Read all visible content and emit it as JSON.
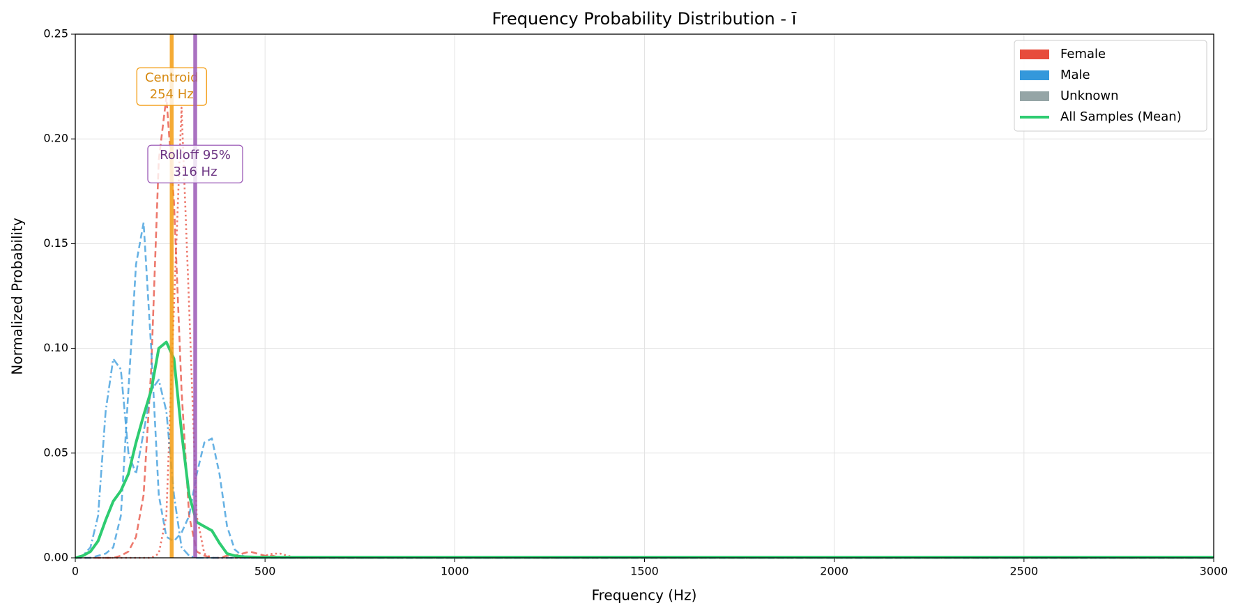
{
  "chart_data": {
    "type": "line",
    "title": "Frequency Probability Distribution - ī",
    "x_label": "Frequency (Hz)",
    "y_label": "Normalized Probability",
    "x": [
      0,
      20,
      40,
      60,
      80,
      100,
      120,
      140,
      160,
      180,
      200,
      220,
      240,
      260,
      280,
      300,
      320,
      340,
      360,
      380,
      400,
      420,
      440,
      460,
      480,
      500,
      520,
      540,
      560,
      580,
      600,
      3000
    ],
    "series": [
      {
        "color": "#e74c3c",
        "dash": "dashed",
        "values": [
          0,
          0,
          0,
          0,
          0,
          0,
          0.001,
          0.003,
          0.01,
          0.03,
          0.09,
          0.19,
          0.22,
          0.17,
          0.08,
          0.02,
          0.003,
          0.001,
          0,
          0,
          0.001,
          0.001,
          0.002,
          0.003,
          0.002,
          0.001,
          0.001,
          0,
          0,
          0,
          0,
          0
        ]
      },
      {
        "color": "#e74c3c",
        "dash": "dotted",
        "values": [
          0,
          0,
          0,
          0,
          0,
          0,
          0,
          0,
          0,
          0,
          0,
          0.002,
          0.02,
          0.12,
          0.215,
          0.12,
          0.02,
          0.002,
          0,
          0,
          0,
          0,
          0,
          0,
          0,
          0.001,
          0.002,
          0.002,
          0.001,
          0,
          0,
          0
        ]
      },
      {
        "color": "#3498db",
        "dash": "dashed",
        "values": [
          0,
          0,
          0,
          0.001,
          0.002,
          0.005,
          0.02,
          0.08,
          0.14,
          0.16,
          0.1,
          0.03,
          0.01,
          0.008,
          0.012,
          0.02,
          0.04,
          0.055,
          0.057,
          0.04,
          0.015,
          0.004,
          0.001,
          0,
          0,
          0,
          0,
          0,
          0,
          0,
          0,
          0
        ]
      },
      {
        "color": "#3498db",
        "dash": "dashdot",
        "values": [
          0,
          0.001,
          0.005,
          0.02,
          0.07,
          0.095,
          0.09,
          0.05,
          0.04,
          0.06,
          0.08,
          0.085,
          0.07,
          0.03,
          0.005,
          0.001,
          0,
          0,
          0,
          0,
          0,
          0,
          0,
          0,
          0,
          0,
          0,
          0,
          0,
          0,
          0,
          0
        ]
      },
      {
        "name": "All Samples (Mean)",
        "color": "#2ecc71",
        "dash": "solid",
        "values": [
          0,
          0.001,
          0.003,
          0.008,
          0.018,
          0.027,
          0.032,
          0.04,
          0.055,
          0.068,
          0.08,
          0.1,
          0.103,
          0.095,
          0.06,
          0.03,
          0.017,
          0.015,
          0.013,
          0.007,
          0.002,
          0.001,
          0.0005,
          0.0004,
          0.0003,
          0.0003,
          0.0003,
          0.0003,
          0.0003,
          0.0003,
          0.0003,
          0.0003
        ]
      }
    ],
    "annotations": [
      {
        "value": 254,
        "lines": [
          "Centroid",
          "254 Hz"
        ],
        "color": "#f39c12",
        "text_color": "#d68910",
        "y": 0.225
      },
      {
        "value": 316,
        "lines": [
          "Rolloff 95%",
          "316 Hz"
        ],
        "color": "#9b59b6",
        "text_color": "#6c3483",
        "y": 0.188
      }
    ],
    "legend": {
      "loc": "upper right",
      "entries": [
        {
          "label": "Female",
          "color": "#e74c3c",
          "kind": "patch"
        },
        {
          "label": "Male",
          "color": "#3498db",
          "kind": "patch"
        },
        {
          "label": "Unknown",
          "color": "#95a5a6",
          "kind": "patch"
        },
        {
          "label": "All Samples (Mean)",
          "color": "#2ecc71",
          "kind": "line"
        }
      ]
    },
    "xlim": [
      0,
      3000
    ],
    "ylim": [
      0,
      0.25
    ],
    "xticks": [
      0,
      500,
      1000,
      1500,
      2000,
      2500,
      3000
    ],
    "yticks": [
      {
        "value": 0,
        "label": "0.00"
      },
      {
        "value": 0.05,
        "label": "0.05"
      },
      {
        "value": 0.1,
        "label": "0.10"
      },
      {
        "value": 0.15,
        "label": "0.15"
      },
      {
        "value": 0.2,
        "label": "0.20"
      },
      {
        "value": 0.25,
        "label": "0.25"
      }
    ],
    "grid": true
  }
}
